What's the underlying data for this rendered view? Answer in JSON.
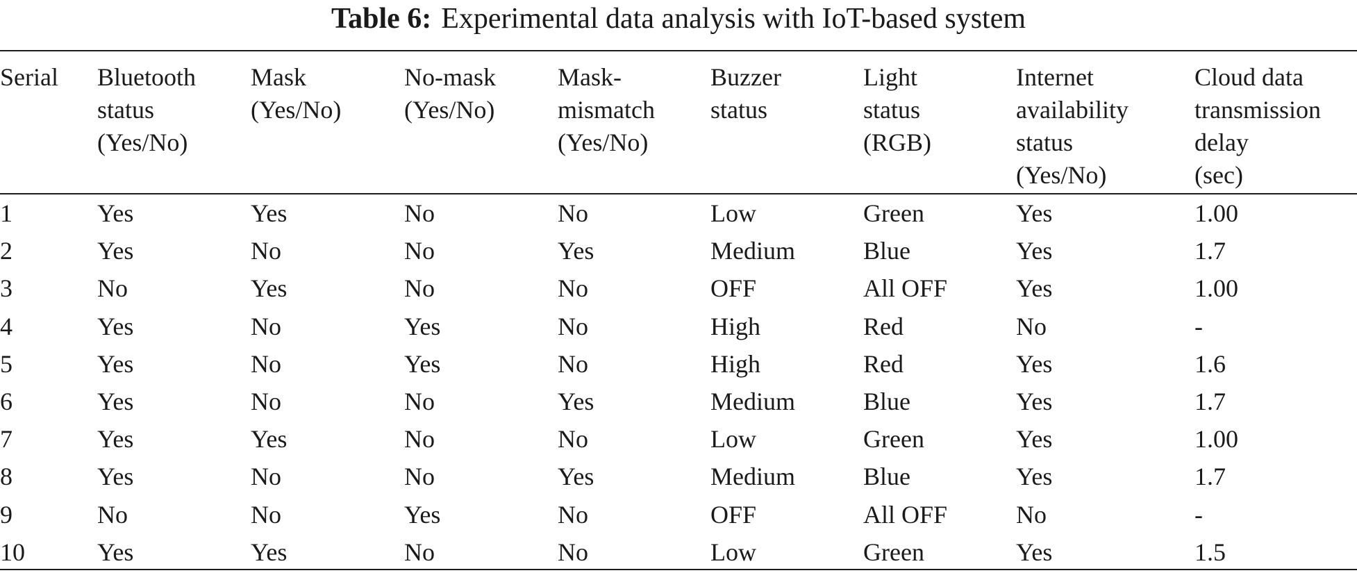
{
  "caption": {
    "label": "Table 6:",
    "text": "Experimental data analysis with IoT-based system"
  },
  "table": {
    "headers": [
      [
        "Serial"
      ],
      [
        "Bluetooth",
        "status",
        "(Yes/No)"
      ],
      [
        "Mask",
        "(Yes/No)"
      ],
      [
        "No-mask",
        "(Yes/No)"
      ],
      [
        "Mask-",
        "mismatch",
        "(Yes/No)"
      ],
      [
        "Buzzer",
        "status"
      ],
      [
        "Light",
        "status",
        "(RGB)"
      ],
      [
        "Internet",
        "availability",
        "status",
        "(Yes/No)"
      ],
      [
        "Cloud data",
        "transmission",
        "delay",
        "(sec)"
      ]
    ],
    "rows": [
      [
        "1",
        "Yes",
        "Yes",
        "No",
        "No",
        "Low",
        "Green",
        "Yes",
        "1.00"
      ],
      [
        "2",
        "Yes",
        "No",
        "No",
        "Yes",
        "Medium",
        "Blue",
        "Yes",
        "1.7"
      ],
      [
        "3",
        "No",
        "Yes",
        "No",
        "No",
        "OFF",
        "All OFF",
        "Yes",
        "1.00"
      ],
      [
        "4",
        "Yes",
        "No",
        "Yes",
        "No",
        "High",
        "Red",
        "No",
        "-"
      ],
      [
        "5",
        "Yes",
        "No",
        "Yes",
        "No",
        "High",
        "Red",
        "Yes",
        "1.6"
      ],
      [
        "6",
        "Yes",
        "No",
        "No",
        "Yes",
        "Medium",
        "Blue",
        "Yes",
        "1.7"
      ],
      [
        "7",
        "Yes",
        "Yes",
        "No",
        "No",
        "Low",
        "Green",
        "Yes",
        "1.00"
      ],
      [
        "8",
        "Yes",
        "No",
        "No",
        "Yes",
        "Medium",
        "Blue",
        "Yes",
        "1.7"
      ],
      [
        "9",
        "No",
        "No",
        "Yes",
        "No",
        "OFF",
        "All OFF",
        "No",
        "-"
      ],
      [
        "10",
        "Yes",
        "Yes",
        "No",
        "No",
        "Low",
        "Green",
        "Yes",
        "1.5"
      ]
    ]
  }
}
